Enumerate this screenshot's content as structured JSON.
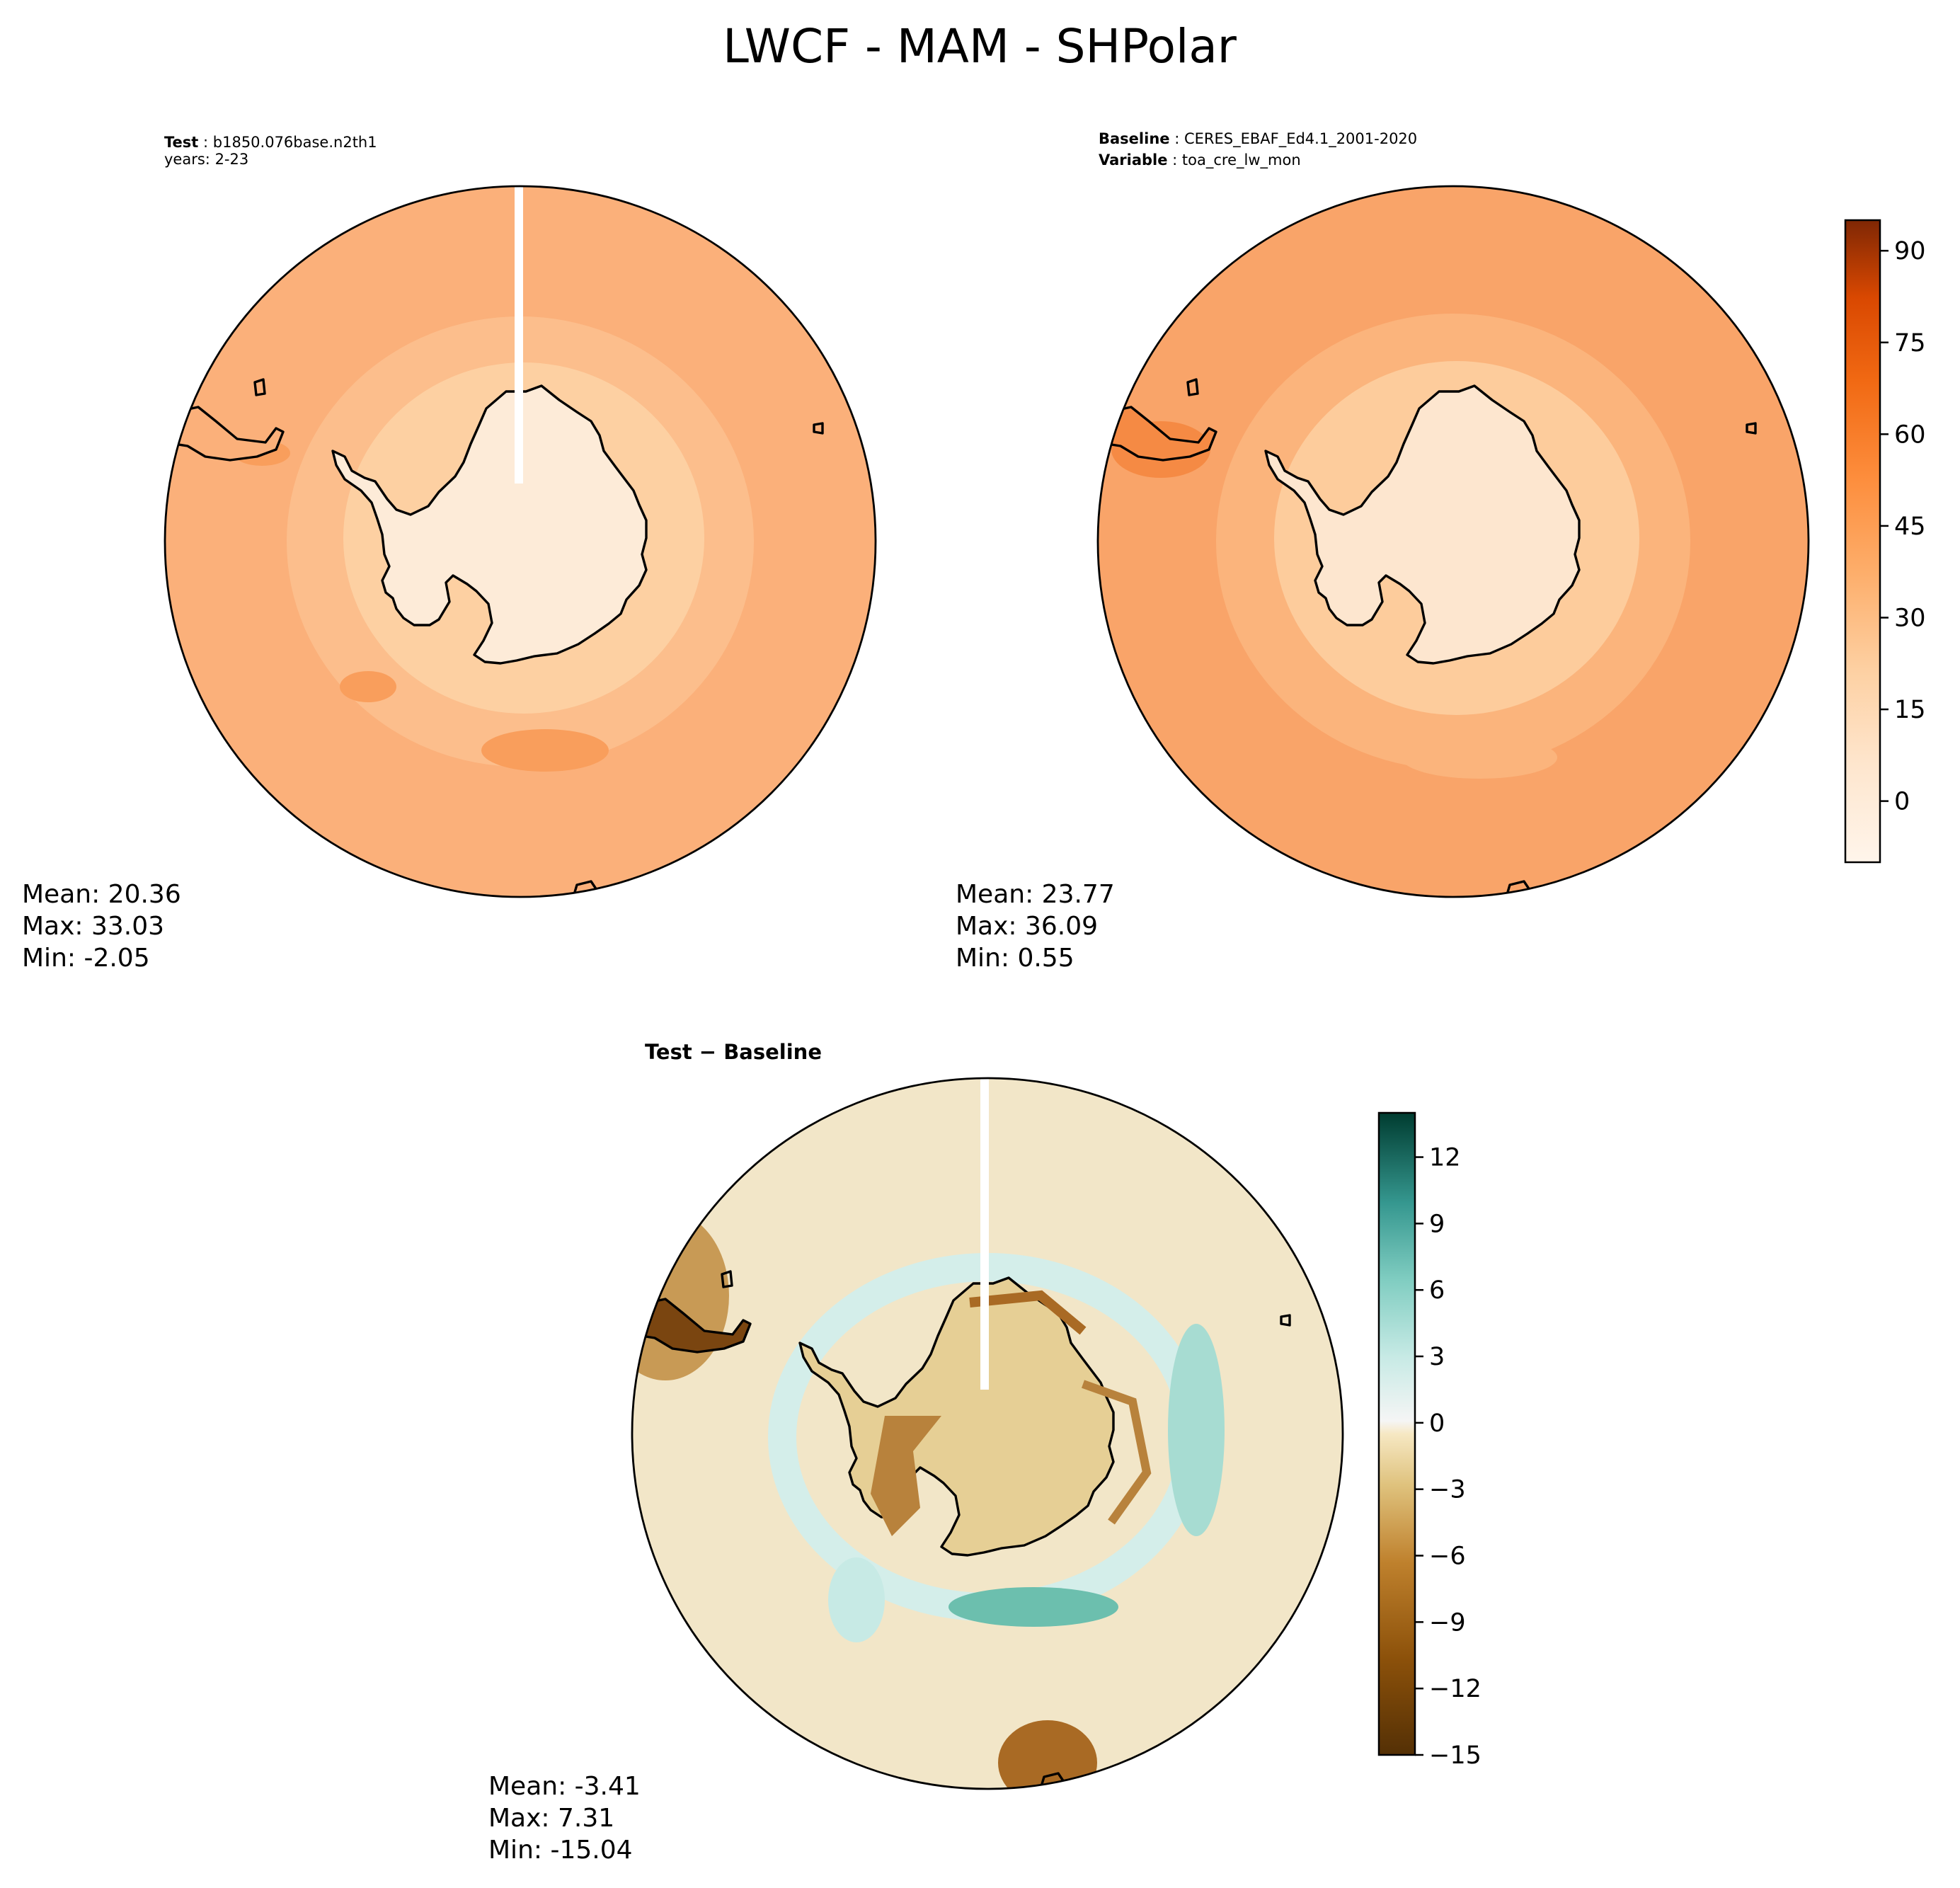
{
  "figure": {
    "title": "LWCF - MAM - SHPolar"
  },
  "panels": {
    "test": {
      "line1_label": "Test",
      "line1_value": "b1850.076base.n2th1",
      "line2_label": "years",
      "line2_value": "2-23",
      "mean": "Mean: 20.36",
      "max": "Max: 33.03",
      "min": "Min: -2.05"
    },
    "baseline": {
      "line1_label": "Baseline",
      "line1_value": "CERES_EBAF_Ed4.1_2001-2020",
      "line2_label": "Variable",
      "line2_value": "toa_cre_lw_mon",
      "mean": "Mean: 23.77",
      "max": "Max: 36.09",
      "min": "Min:  0.55"
    },
    "difference": {
      "title": "Test − Baseline",
      "mean": "Mean: -3.41",
      "max": "Max:  7.31",
      "min": "Min: -15.04"
    }
  },
  "colorbars": {
    "main": {
      "colormap": "Oranges",
      "range": [
        -10,
        95
      ],
      "ticks": [
        "90",
        "75",
        "60",
        "45",
        "30",
        "15",
        "0"
      ],
      "tick_values": [
        90,
        75,
        60,
        45,
        30,
        15,
        0
      ]
    },
    "difference": {
      "colormap": "BrBG",
      "range": [
        -15,
        14
      ],
      "ticks": [
        "12",
        "9",
        "6",
        "3",
        "0",
        "−3",
        "−6",
        "−9",
        "−12",
        "−15"
      ],
      "tick_values": [
        12,
        9,
        6,
        3,
        0,
        -3,
        -6,
        -9,
        -12,
        -15
      ]
    }
  },
  "colors": {
    "ocean_test": "#fbb07a",
    "ocean_baseline": "#f9a469",
    "continent_interior": "#fdebd8",
    "diff_background": "#f2e6c8",
    "diff_brown": "#a96a24",
    "diff_teal": "#6cbfae"
  }
}
